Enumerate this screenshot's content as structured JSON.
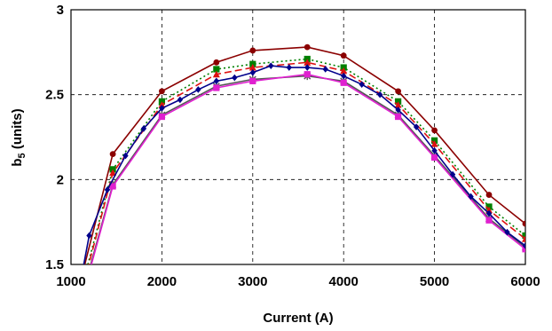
{
  "chart_data": {
    "type": "line",
    "xlabel": "Current (A)",
    "ylabel": "b5 (units)",
    "ylabel_parts": {
      "base": "b",
      "sub": "5",
      "rest": " (units)"
    },
    "xlim": [
      1000,
      6000
    ],
    "ylim": [
      1.5,
      3
    ],
    "xticks": [
      1000,
      2000,
      3000,
      4000,
      5000,
      6000
    ],
    "yticks": [
      1.5,
      2,
      2.5,
      3
    ],
    "ytick_labels": [
      "1.5",
      "2",
      "2.5",
      "3"
    ],
    "grid": true,
    "series": [
      {
        "color": "#8b0000",
        "marker": "circle",
        "dash": "",
        "x": [
          1000,
          1460,
          2000,
          2600,
          3000,
          3600,
          4000,
          4600,
          5000,
          5600,
          6000
        ],
        "y": [
          1.18,
          2.15,
          2.52,
          2.69,
          2.76,
          2.78,
          2.73,
          2.52,
          2.29,
          1.91,
          1.74
        ]
      },
      {
        "color": "#008000",
        "marker": "square",
        "dash": "2,3",
        "x": [
          1000,
          1460,
          2000,
          2600,
          3000,
          3600,
          4000,
          4600,
          5000,
          5600,
          6000
        ],
        "y": [
          1.12,
          2.06,
          2.46,
          2.65,
          2.68,
          2.71,
          2.66,
          2.46,
          2.23,
          1.84,
          1.67
        ]
      },
      {
        "color": "#dd1111",
        "marker": "triangle",
        "dash": "8,4",
        "x": [
          1000,
          1460,
          2000,
          2600,
          3000,
          3600,
          4000,
          4600,
          5000,
          5600,
          6000
        ],
        "y": [
          1.1,
          2.04,
          2.44,
          2.62,
          2.66,
          2.69,
          2.64,
          2.44,
          2.21,
          1.82,
          1.65
        ]
      },
      {
        "color": "#555555",
        "marker": "star",
        "dash": "",
        "x": [
          1000,
          1460,
          2000,
          2600,
          3000,
          3600,
          4000,
          4600,
          5000,
          5600,
          6000
        ],
        "y": [
          1.08,
          1.97,
          2.38,
          2.55,
          2.59,
          2.61,
          2.58,
          2.38,
          2.14,
          1.77,
          1.6
        ]
      },
      {
        "color": "#e020d0",
        "marker": "square",
        "dash": "",
        "x": [
          1000,
          1460,
          2000,
          2600,
          3000,
          3600,
          4000,
          4600,
          5000,
          5600,
          6000
        ],
        "y": [
          1.06,
          1.96,
          2.37,
          2.54,
          2.58,
          2.62,
          2.57,
          2.37,
          2.13,
          1.76,
          1.59
        ]
      },
      {
        "color": "#00008b",
        "marker": "diamond",
        "dash": "",
        "x": [
          1000,
          1200,
          1400,
          1600,
          1800,
          2000,
          2200,
          2400,
          2600,
          2800,
          3000,
          3200,
          3400,
          3600,
          3800,
          4000,
          4200,
          4400,
          4600,
          4800,
          5000,
          5200,
          5400,
          5600,
          5800,
          6000
        ],
        "y": [
          1.1,
          1.67,
          1.94,
          2.14,
          2.3,
          2.42,
          2.47,
          2.53,
          2.58,
          2.6,
          2.63,
          2.67,
          2.66,
          2.66,
          2.65,
          2.61,
          2.56,
          2.5,
          2.41,
          2.31,
          2.17,
          2.03,
          1.9,
          1.8,
          1.69,
          1.61
        ]
      }
    ]
  }
}
